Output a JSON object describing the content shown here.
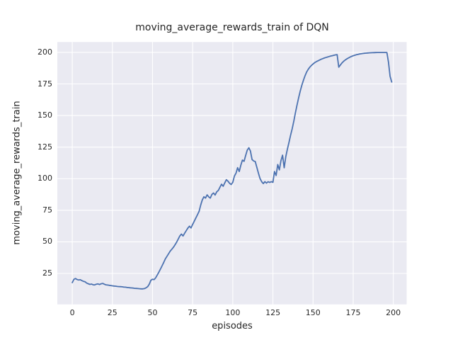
{
  "chart_data": {
    "type": "line",
    "title": "moving_average_rewards_train of DQN",
    "xlabel": "episodes",
    "ylabel": "moving_average_rewards_train",
    "legend": null,
    "grid": true,
    "x_ticks": [
      0,
      25,
      50,
      75,
      100,
      125,
      150,
      175,
      200
    ],
    "y_ticks": [
      25,
      50,
      75,
      100,
      125,
      150,
      175,
      200
    ],
    "xlim": [
      -9.3,
      208.3
    ],
    "ylim": [
      0.5,
      208.2
    ],
    "style": {
      "figure_bg": "#ffffff",
      "plot_bg": "#eaeaf2",
      "grid_color": "#ffffff",
      "line_color": "#4c72b0",
      "text_color": "#262626"
    },
    "series": [
      {
        "name": "moving_average_rewards_train",
        "x_start": 0,
        "x_step": 1,
        "values": [
          17.7,
          20.3,
          21.0,
          20.2,
          19.8,
          20.0,
          19.3,
          18.7,
          18.4,
          17.3,
          16.8,
          16.3,
          16.6,
          16.0,
          15.9,
          16.5,
          16.7,
          16.2,
          16.8,
          17.1,
          16.4,
          16.0,
          15.8,
          15.6,
          15.4,
          15.2,
          15.0,
          14.9,
          14.7,
          14.6,
          14.5,
          14.4,
          14.2,
          14.1,
          13.9,
          13.8,
          13.6,
          13.5,
          13.4,
          13.2,
          13.1,
          13.0,
          12.9,
          12.8,
          12.8,
          13.0,
          13.6,
          14.6,
          16.6,
          19.6,
          20.4,
          20.1,
          21.6,
          23.8,
          26.2,
          28.6,
          31.2,
          33.8,
          36.5,
          38.6,
          40.6,
          42.6,
          44.1,
          45.7,
          47.6,
          49.7,
          52.2,
          54.6,
          56.2,
          54.6,
          56.8,
          58.8,
          60.9,
          62.4,
          61.0,
          63.8,
          66.4,
          68.9,
          71.5,
          74.2,
          79.0,
          83.2,
          85.7,
          84.6,
          87.2,
          85.6,
          84.6,
          87.6,
          88.7,
          87.0,
          89.6,
          90.7,
          93.2,
          95.6,
          94.0,
          96.6,
          99.2,
          98.0,
          96.4,
          95.4,
          97.1,
          102.1,
          104.3,
          108.7,
          105.7,
          110.6,
          114.7,
          113.7,
          118.2,
          122.6,
          124.5,
          121.9,
          115.2,
          114.0,
          113.6,
          108.9,
          104.2,
          100.1,
          97.6,
          96.1,
          97.7,
          96.5,
          97.6,
          97.0,
          97.7,
          97.1,
          105.7,
          102.5,
          111.2,
          107.0,
          114.2,
          118.6,
          108.6,
          117.2,
          123.3,
          128.8,
          134.3,
          139.5,
          145.5,
          152.0,
          158.2,
          164.0,
          169.2,
          173.9,
          177.9,
          181.4,
          184.4,
          186.6,
          188.3,
          189.7,
          190.8,
          191.8,
          192.6,
          193.3,
          193.9,
          194.5,
          195.0,
          195.5,
          195.9,
          196.3,
          196.7,
          197.1,
          197.4,
          197.7,
          198.0,
          198.2,
          188.3,
          190.0,
          191.6,
          192.9,
          193.9,
          194.8,
          195.5,
          196.2,
          196.8,
          197.3,
          197.7,
          198.1,
          198.4,
          198.7,
          198.9,
          199.1,
          199.3,
          199.4,
          199.5,
          199.6,
          199.7,
          199.75,
          199.8,
          199.85,
          199.9,
          199.9,
          199.9,
          199.9,
          199.9,
          199.9,
          199.9,
          192.0,
          181.0,
          176.5
        ]
      }
    ]
  }
}
